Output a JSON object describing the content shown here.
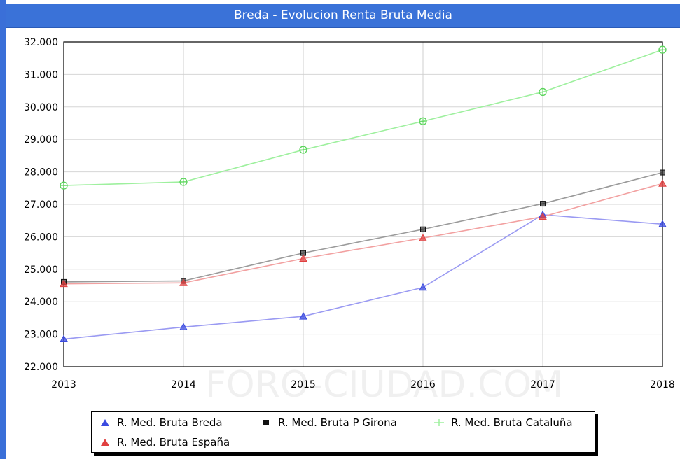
{
  "window": {
    "title": "Breda - Evolucion Renta Bruta Media"
  },
  "watermark": "FORO-CIUDAD.COM",
  "chart_data": {
    "type": "line",
    "title": "Breda - Evolucion Renta Bruta Media",
    "xlabel": "",
    "ylabel": "",
    "x": [
      2013,
      2014,
      2015,
      2016,
      2017,
      2018
    ],
    "x_tick_labels": [
      "2013",
      "2014",
      "2015",
      "2016",
      "2017",
      "2018"
    ],
    "ylim": [
      22000,
      32000
    ],
    "y_ticks": [
      22000,
      23000,
      24000,
      25000,
      26000,
      27000,
      28000,
      29000,
      30000,
      31000,
      32000
    ],
    "y_tick_labels": [
      "22.000",
      "23.000",
      "24.000",
      "25.000",
      "26.000",
      "27.000",
      "28.000",
      "29.000",
      "30.000",
      "31.000",
      "32.000"
    ],
    "grid": true,
    "legend_position": "bottom",
    "series": [
      {
        "name": "R. Med. Bruta Breda",
        "values": [
          22850,
          23220,
          23550,
          24440,
          26680,
          26390
        ],
        "line_color": "#9a9af2",
        "marker": "triangle",
        "marker_color": "#3a4ae0"
      },
      {
        "name": "R. Med. Bruta P Girona",
        "values": [
          24610,
          24640,
          25500,
          26230,
          27020,
          27980
        ],
        "line_color": "#9a9a9a",
        "marker": "square",
        "marker_color": "#111111"
      },
      {
        "name": "R. Med. Bruta Cataluña",
        "values": [
          27580,
          27690,
          28680,
          29560,
          30460,
          31760
        ],
        "line_color": "#9ef09e",
        "marker": "circle",
        "marker_color": "#5ad35a"
      },
      {
        "name": "R. Med. Bruta España",
        "values": [
          24550,
          24580,
          25330,
          25960,
          26620,
          27640
        ],
        "line_color": "#f2a0a0",
        "marker": "triangle",
        "marker_color": "#e04040"
      }
    ]
  }
}
